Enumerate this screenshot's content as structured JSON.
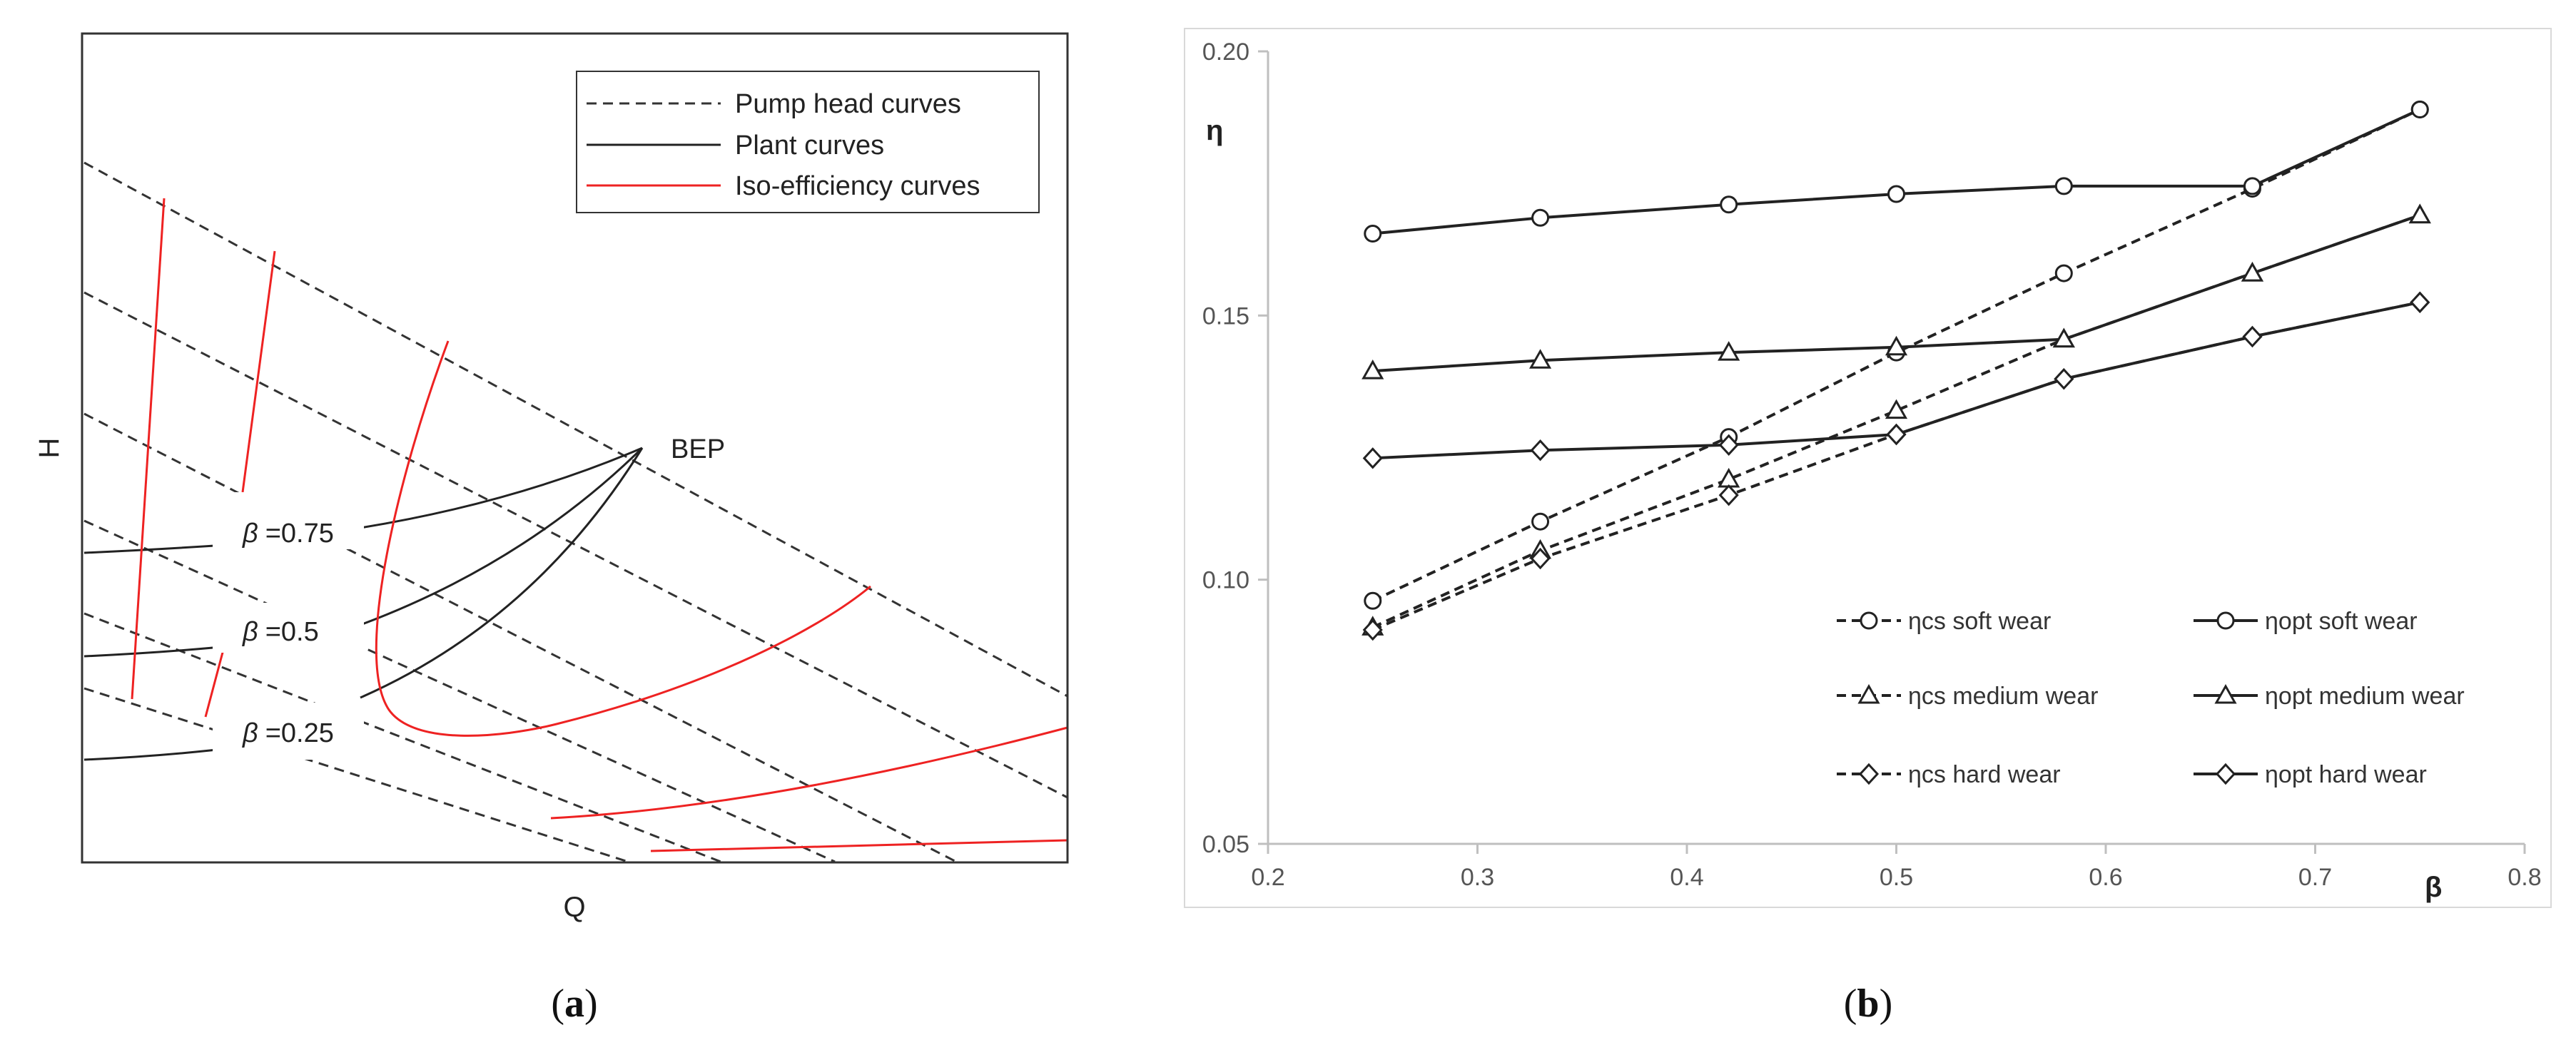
{
  "panel_a": {
    "label_open": "(",
    "label_letter": "a",
    "label_close": ")",
    "xlabel": "Q",
    "ylabel": "H",
    "legend": [
      "Pump head curves",
      "Plant curves",
      "Iso-efficiency curves"
    ],
    "bep_label": "BEP",
    "beta_symbol": "β",
    "beta_labels": [
      "=0.75",
      "=0.5",
      "=0.25"
    ],
    "colors": {
      "pump": "#333333",
      "plant": "#222222",
      "iso": "#ee2222"
    }
  },
  "panel_b": {
    "label_open": "(",
    "label_letter": "b",
    "label_close": ")"
  },
  "chart_data": {
    "type": "line",
    "title": "",
    "xlabel": "β",
    "ylabel": "η",
    "xlim": [
      0.2,
      0.8
    ],
    "ylim": [
      0.05,
      0.2
    ],
    "xticks": [
      "0.2",
      "0.3",
      "0.4",
      "0.5",
      "0.6",
      "0.7",
      "0.8"
    ],
    "yticks": [
      "0.05",
      "0.10",
      "0.15",
      "0.20"
    ],
    "legend_position": "bottom-right",
    "series": [
      {
        "name": "ηcs soft wear",
        "marker": "circle",
        "dashed": true,
        "x": [
          0.25,
          0.33,
          0.42,
          0.5,
          0.58,
          0.67,
          0.75
        ],
        "y": [
          0.096,
          0.111,
          0.127,
          0.143,
          0.158,
          0.174,
          0.189
        ]
      },
      {
        "name": "ηopt soft wear",
        "marker": "circle",
        "dashed": false,
        "x": [
          0.25,
          0.33,
          0.42,
          0.5,
          0.58,
          0.67,
          0.75
        ],
        "y": [
          0.1655,
          0.1685,
          0.171,
          0.173,
          0.1745,
          0.1745,
          0.189
        ]
      },
      {
        "name": "ηcs medium wear",
        "marker": "triangle",
        "dashed": true,
        "x": [
          0.25,
          0.33,
          0.42,
          0.5,
          0.58,
          0.67,
          0.75
        ],
        "y": [
          0.091,
          0.1055,
          0.119,
          0.132,
          0.1455,
          0.158,
          0.169
        ]
      },
      {
        "name": "ηopt medium wear",
        "marker": "triangle",
        "dashed": false,
        "x": [
          0.25,
          0.33,
          0.42,
          0.5,
          0.58,
          0.67,
          0.75
        ],
        "y": [
          0.1395,
          0.1415,
          0.143,
          0.144,
          0.1455,
          0.158,
          0.169
        ]
      },
      {
        "name": "ηcs hard wear",
        "marker": "diamond",
        "dashed": true,
        "x": [
          0.25,
          0.33,
          0.42,
          0.5,
          0.58,
          0.67,
          0.75
        ],
        "y": [
          0.0905,
          0.104,
          0.116,
          0.1275,
          0.138,
          0.146,
          0.1525
        ]
      },
      {
        "name": "ηopt hard wear",
        "marker": "diamond",
        "dashed": false,
        "x": [
          0.25,
          0.33,
          0.42,
          0.5,
          0.58,
          0.67,
          0.75
        ],
        "y": [
          0.123,
          0.1245,
          0.1255,
          0.1275,
          0.138,
          0.146,
          0.1525
        ]
      }
    ]
  }
}
